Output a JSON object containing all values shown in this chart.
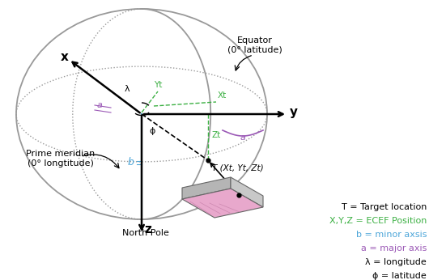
{
  "legend_lines": [
    {
      "text": "ϕ = latitude",
      "color": "#000000"
    },
    {
      "text": "λ = longitude",
      "color": "#000000"
    },
    {
      "text": "a = major axis",
      "color": "#9b59b6"
    },
    {
      "text": "b = minor axsis",
      "color": "#4da6d9"
    },
    {
      "text": "X,Y,Z = ECEF Position",
      "color": "#3cb043"
    },
    {
      "text": "T = Target location",
      "color": "#000000"
    }
  ],
  "ellipsoid_edge": "#999999",
  "b_axis_color": "#4da6d9",
  "a_axis_color": "#9b59b6",
  "green": "#3cb043",
  "black": "#000000",
  "gray": "#aaaaaa",
  "platform_pink": "#e8a8cc",
  "platform_gray": "#b8b8b8",
  "background": "#ffffff"
}
